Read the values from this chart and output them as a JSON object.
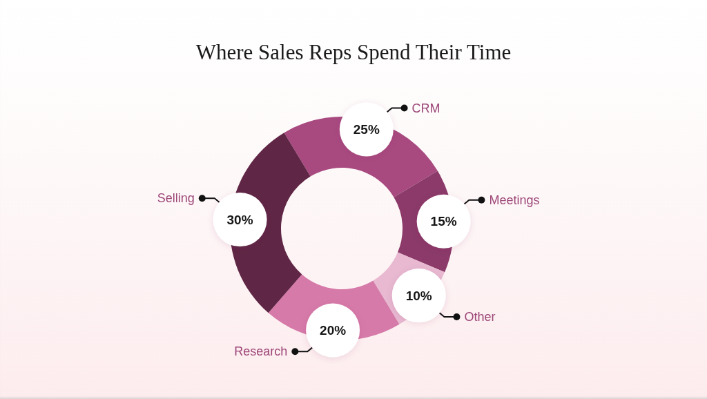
{
  "chart_data": {
    "type": "donut",
    "title": "Where Sales Reps Spend Their Time",
    "categories": [
      "CRM",
      "Meetings",
      "Other",
      "Research",
      "Selling"
    ],
    "values": [
      25,
      15,
      10,
      20,
      30
    ],
    "colors": [
      "#a84a80",
      "#8b3a69",
      "#e8b9d1",
      "#d67aa9",
      "#5f2645"
    ],
    "value_labels": [
      "25%",
      "15%",
      "10%",
      "20%",
      "30%"
    ]
  }
}
